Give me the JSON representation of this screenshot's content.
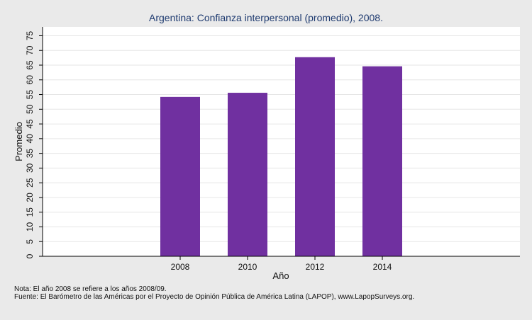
{
  "chart_data": {
    "type": "bar",
    "title": "Argentina: Confianza interpersonal (promedio), 2008.",
    "xlabel": "Año",
    "ylabel": "Promedio",
    "categories": [
      "2008",
      "2010",
      "2012",
      "2014"
    ],
    "values": [
      54.2,
      55.6,
      67.7,
      64.6
    ],
    "ylim": [
      0,
      78
    ],
    "yticks": [
      0,
      5,
      10,
      15,
      20,
      25,
      30,
      35,
      40,
      45,
      50,
      55,
      60,
      65,
      70,
      75
    ],
    "grid": true,
    "bar_color": "#7030a0",
    "plot_background": "#ffffff",
    "page_background": "#eaeaea"
  },
  "notes": {
    "nota": "Nota: El año 2008 se refiere a los años 2008/09.",
    "fuente": "Fuente: El Barómetro de las Américas por el Proyecto de Opinión Pública de América Latina (LAPOP), www.LapopSurveys.org."
  }
}
